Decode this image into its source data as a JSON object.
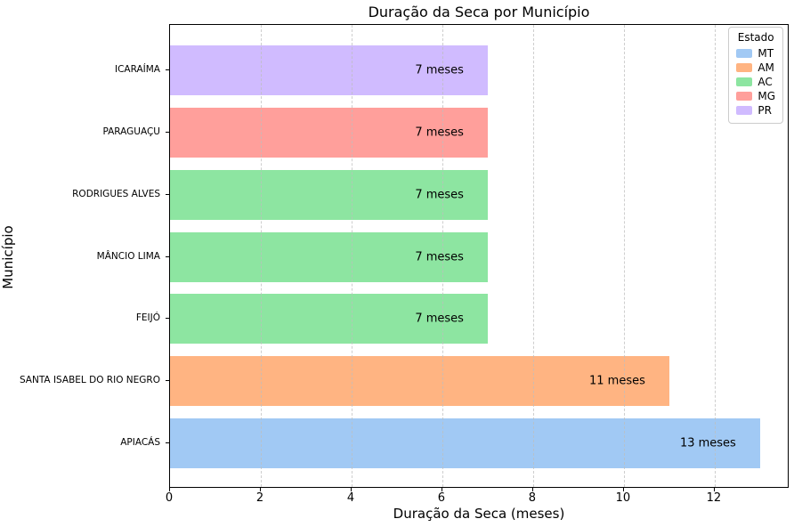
{
  "chart_data": {
    "type": "bar",
    "orientation": "horizontal",
    "title": "Duração da Seca por Município",
    "xlabel": "Duração da Seca (meses)",
    "ylabel": "Município",
    "bars_top_to_bottom": [
      {
        "municipio": "ICARAÍMA",
        "estado": "PR",
        "value": 7,
        "label": "7 meses"
      },
      {
        "municipio": "PARAGUAÇU",
        "estado": "MG",
        "value": 7,
        "label": "7 meses"
      },
      {
        "municipio": "RODRIGUES ALVES",
        "estado": "AC",
        "value": 7,
        "label": "7 meses"
      },
      {
        "municipio": "MÂNCIO LIMA",
        "estado": "AC",
        "value": 7,
        "label": "7 meses"
      },
      {
        "municipio": "FEIJÓ",
        "estado": "AC",
        "value": 7,
        "label": "7 meses"
      },
      {
        "municipio": "SANTA ISABEL DO RIO NEGRO",
        "estado": "AM",
        "value": 11,
        "label": "11 meses"
      },
      {
        "municipio": "APIACÁS",
        "estado": "MT",
        "value": 13,
        "label": "13 meses"
      }
    ],
    "xlim": [
      0,
      13.65
    ],
    "xticks": [
      0,
      2,
      4,
      6,
      8,
      10,
      12
    ],
    "grid": "vertical-dashed",
    "state_colors": {
      "MT": "#a1c9f4",
      "AM": "#ffb482",
      "AC": "#8de5a1",
      "MG": "#ff9f9b",
      "PR": "#d0bbff"
    },
    "legend": {
      "title": "Estado",
      "position": "upper-right",
      "entries": [
        {
          "label": "MT",
          "color": "#a1c9f4"
        },
        {
          "label": "AM",
          "color": "#ffb482"
        },
        {
          "label": "AC",
          "color": "#8de5a1"
        },
        {
          "label": "MG",
          "color": "#ff9f9b"
        },
        {
          "label": "PR",
          "color": "#d0bbff"
        }
      ]
    }
  }
}
